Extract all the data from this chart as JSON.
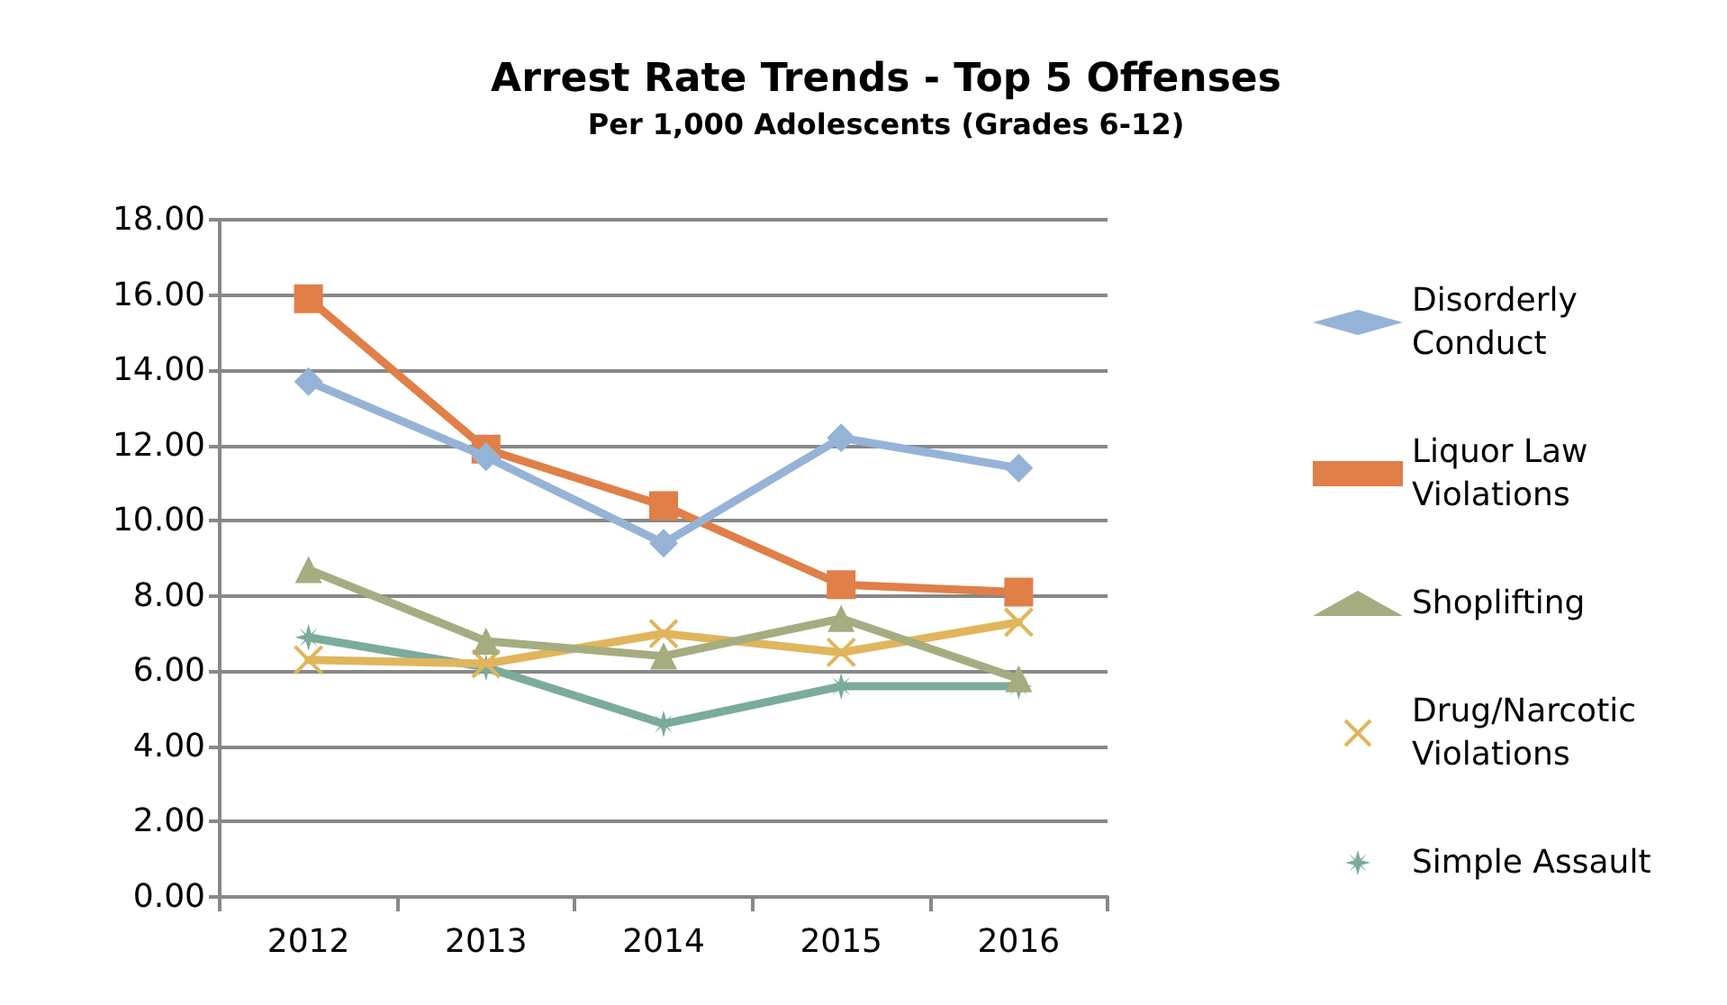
{
  "chart_data": {
    "type": "line",
    "title": "Arrest Rate Trends - Top 5 Offenses",
    "subtitle": "Per 1,000 Adolescents (Grades 6-12)",
    "categories": [
      "2012",
      "2013",
      "2014",
      "2015",
      "2016"
    ],
    "series": [
      {
        "name": "Disorderly Conduct",
        "color": "#95b3d7",
        "marker": "diamond",
        "values": [
          13.7,
          11.7,
          9.4,
          12.2,
          11.4
        ]
      },
      {
        "name": "Liquor Law Violations",
        "color": "#e07f47",
        "marker": "square",
        "values": [
          15.9,
          11.9,
          10.4,
          8.3,
          8.1
        ]
      },
      {
        "name": "Shoplifting",
        "color": "#a5ac7f",
        "marker": "triangle",
        "values": [
          8.7,
          6.8,
          6.4,
          7.4,
          5.8
        ]
      },
      {
        "name": "Drug/Narcotic Violations",
        "color": "#e0b55c",
        "marker": "cross",
        "values": [
          6.3,
          6.2,
          7.0,
          6.5,
          7.3
        ]
      },
      {
        "name": "Simple Assault",
        "color": "#7aab9b",
        "marker": "star",
        "values": [
          6.9,
          6.1,
          4.6,
          5.6,
          5.6
        ]
      }
    ],
    "ylim": [
      0,
      18
    ],
    "yticks": [
      {
        "value": 0,
        "label": "0.00"
      },
      {
        "value": 2,
        "label": "2.00"
      },
      {
        "value": 4,
        "label": "4.00"
      },
      {
        "value": 6,
        "label": "6.00"
      },
      {
        "value": 8,
        "label": "8.00"
      },
      {
        "value": 10,
        "label": "10.00"
      },
      {
        "value": 12,
        "label": "12.00"
      },
      {
        "value": 14,
        "label": "14.00"
      },
      {
        "value": 16,
        "label": "16.00"
      },
      {
        "value": 18,
        "label": "18.00"
      }
    ],
    "grid": "y",
    "legend": "right",
    "line_style": "solid"
  }
}
